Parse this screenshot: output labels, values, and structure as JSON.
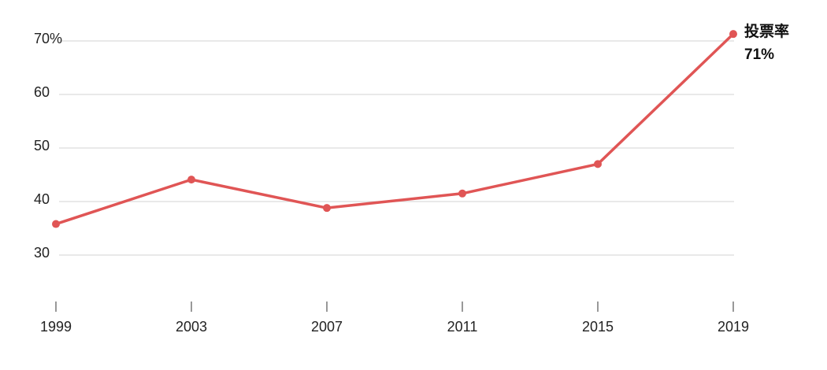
{
  "chart_data": {
    "type": "line",
    "x": [
      1999,
      2003,
      2007,
      2011,
      2015,
      2019
    ],
    "series": [
      {
        "name": "投票率",
        "color": "#e05555",
        "values": [
          35.8,
          44.1,
          38.8,
          41.5,
          47.0,
          71.3
        ],
        "value_labels": [
          null,
          null,
          null,
          null,
          null,
          "71%"
        ]
      }
    ],
    "xlim": [
      1999,
      2019
    ],
    "xticks": [
      1999,
      2003,
      2007,
      2011,
      2015,
      2019
    ],
    "ylim": [
      20,
      75
    ],
    "yticks": [
      {
        "value": 70,
        "label": "70%"
      },
      60,
      50,
      40,
      30
    ],
    "grid": true
  }
}
